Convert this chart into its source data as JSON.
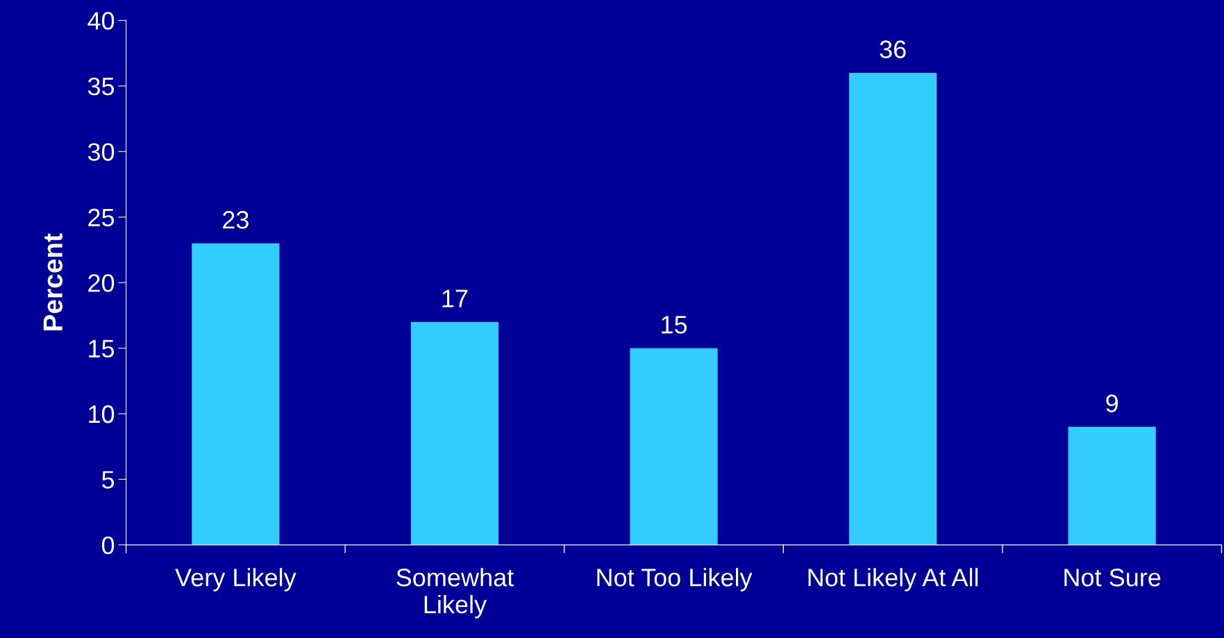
{
  "chart_data": {
    "type": "bar",
    "ylabel": "Percent",
    "categories": [
      "Very Likely",
      "Somewhat\nLikely",
      "Not Too Likely",
      "Not Likely At All",
      "Not Sure"
    ],
    "values": [
      23,
      17,
      15,
      36,
      9
    ],
    "color": "#33ccff",
    "ylim": [
      0,
      40
    ],
    "yticks": [
      0,
      5,
      10,
      15,
      20,
      25,
      30,
      35,
      40
    ],
    "grid": false,
    "data_labels": true
  }
}
